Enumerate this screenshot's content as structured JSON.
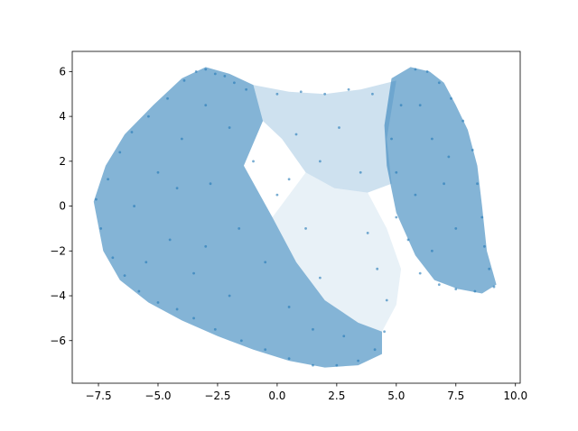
{
  "chart_data": {
    "type": "scatter",
    "title": "",
    "xlabel": "",
    "ylabel": "",
    "xlim": [
      -8.6,
      10.2
    ],
    "ylim": [
      -7.9,
      6.9
    ],
    "x_ticks": [
      -7.5,
      -5.0,
      -2.5,
      0.0,
      2.5,
      5.0,
      7.5,
      10.0
    ],
    "x_tick_labels": [
      "−7.5",
      "−5.0",
      "−2.5",
      "0.0",
      "2.5",
      "5.0",
      "7.5",
      "10.0"
    ],
    "y_ticks": [
      -6,
      -4,
      -2,
      0,
      2,
      4,
      6
    ],
    "y_tick_labels": [
      "−6",
      "−4",
      "−2",
      "0",
      "2",
      "4",
      "6"
    ],
    "grid": false,
    "legend": "none",
    "point_color": "#1f77b4",
    "point_alpha": 0.2,
    "series": [
      {
        "points": [
          [
            -7.6,
            0.3
          ],
          [
            -7.4,
            -1.0
          ],
          [
            -7.1,
            1.2
          ],
          [
            -6.9,
            -2.3
          ],
          [
            -6.6,
            2.4
          ],
          [
            -6.4,
            -3.1
          ],
          [
            -6.1,
            3.3
          ],
          [
            -5.8,
            -3.8
          ],
          [
            -5.4,
            4.0
          ],
          [
            -5.0,
            -4.3
          ],
          [
            -4.6,
            4.8
          ],
          [
            -4.2,
            -4.6
          ],
          [
            -3.9,
            5.6
          ],
          [
            -3.4,
            6.0
          ],
          [
            -3.0,
            6.1
          ],
          [
            -2.6,
            5.9
          ],
          [
            -2.2,
            5.8
          ],
          [
            -1.8,
            5.5
          ],
          [
            -1.3,
            5.2
          ],
          [
            -3.5,
            -5.0
          ],
          [
            -2.6,
            -5.5
          ],
          [
            -1.5,
            -6.0
          ],
          [
            -0.5,
            -6.4
          ],
          [
            0.5,
            -6.8
          ],
          [
            1.5,
            -7.1
          ],
          [
            2.5,
            -7.1
          ],
          [
            3.4,
            -6.9
          ],
          [
            4.1,
            -6.4
          ],
          [
            4.5,
            -5.6
          ],
          [
            -6.0,
            0.0
          ],
          [
            -5.0,
            1.5
          ],
          [
            -4.0,
            3.0
          ],
          [
            -3.0,
            4.5
          ],
          [
            -2.0,
            3.5
          ],
          [
            -1.0,
            2.0
          ],
          [
            -4.5,
            -1.5
          ],
          [
            -3.5,
            -3.0
          ],
          [
            -2.0,
            -4.0
          ],
          [
            -0.5,
            -2.5
          ],
          [
            0.5,
            -4.5
          ],
          [
            1.5,
            -5.5
          ],
          [
            2.8,
            -5.8
          ],
          [
            -5.5,
            -2.5
          ],
          [
            -2.8,
            1.0
          ],
          [
            -1.6,
            -1.0
          ],
          [
            0.0,
            0.5
          ],
          [
            -3.0,
            -1.8
          ],
          [
            -4.2,
            0.8
          ],
          [
            0.0,
            5.0
          ],
          [
            1.0,
            5.1
          ],
          [
            2.0,
            5.0
          ],
          [
            3.0,
            5.2
          ],
          [
            4.0,
            5.0
          ],
          [
            0.8,
            3.2
          ],
          [
            1.8,
            2.0
          ],
          [
            2.6,
            3.5
          ],
          [
            3.5,
            1.5
          ],
          [
            0.5,
            1.2
          ],
          [
            1.2,
            -1.0
          ],
          [
            3.8,
            -1.2
          ],
          [
            4.2,
            -2.8
          ],
          [
            4.6,
            -4.2
          ],
          [
            5.0,
            -0.5
          ],
          [
            1.8,
            -3.2
          ],
          [
            5.2,
            4.5
          ],
          [
            5.8,
            6.1
          ],
          [
            6.3,
            6.0
          ],
          [
            6.8,
            5.5
          ],
          [
            7.3,
            4.8
          ],
          [
            7.8,
            3.8
          ],
          [
            8.2,
            2.5
          ],
          [
            8.4,
            1.0
          ],
          [
            8.6,
            -0.5
          ],
          [
            8.7,
            -1.8
          ],
          [
            8.9,
            -2.8
          ],
          [
            9.1,
            -3.6
          ],
          [
            8.3,
            -3.8
          ],
          [
            7.5,
            -3.7
          ],
          [
            6.8,
            -3.5
          ],
          [
            6.0,
            -3.0
          ],
          [
            5.5,
            -1.5
          ],
          [
            5.0,
            1.5
          ],
          [
            4.8,
            3.0
          ],
          [
            6.0,
            4.5
          ],
          [
            6.5,
            3.0
          ],
          [
            7.0,
            1.0
          ],
          [
            7.5,
            -1.0
          ],
          [
            6.5,
            -2.0
          ],
          [
            5.8,
            0.5
          ],
          [
            7.2,
            2.2
          ]
        ]
      }
    ]
  }
}
